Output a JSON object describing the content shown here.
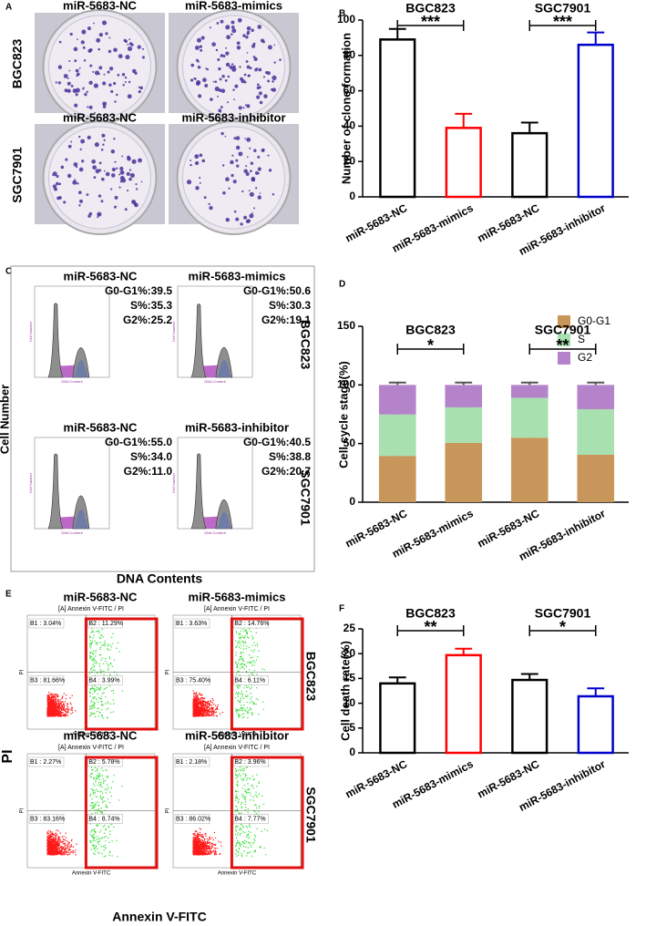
{
  "panel_a": {
    "label": "A",
    "rows": [
      {
        "name": "BGC823",
        "titles": [
          "miR-5683-NC",
          "miR-5683-mimics"
        ]
      },
      {
        "name": "SGC7901",
        "titles": [
          "miR-5683-NC",
          "miR-5683-inhibitor"
        ]
      }
    ]
  },
  "panel_c": {
    "label": "C",
    "y_label": "Cell Number",
    "x_label": "DNA Contents",
    "plot_x_label": "DNA Content",
    "plot_y_label": "Cell Number",
    "rows": [
      {
        "name": "BGC823",
        "plots": [
          {
            "title": "miR-5683-NC",
            "stats": [
              "G0-G1%:39.5",
              "S%:35.3",
              "G2%:25.2"
            ]
          },
          {
            "title": "miR-5683-mimics",
            "stats": [
              "G0-G1%:50.6",
              "S%:30.3",
              "G2%:19.1"
            ]
          }
        ]
      },
      {
        "name": "SGC7901",
        "plots": [
          {
            "title": "miR-5683-NC",
            "stats": [
              "G0-G1%:55.0",
              "S%:34.0",
              "G2%:11.0"
            ]
          },
          {
            "title": "miR-5683-inhibitor",
            "stats": [
              "G0-G1%:40.5",
              "S%:38.8",
              "G2%:20.7"
            ]
          }
        ]
      }
    ]
  },
  "panel_e": {
    "label": "E",
    "y_label": "PI",
    "x_label": "Annexin V-FITC",
    "plot_header": "[A] Annexin V-FITC / PI",
    "plot_x_label": "Annexin V-FITC",
    "plot_y_label": "PI",
    "rows": [
      {
        "name": "BGC823",
        "plots": [
          {
            "title": "miR-5683-NC",
            "quadrants": [
              "B1 : 3.04%",
              "B2 : 11.29%",
              "B3 : 81.66%",
              "B4 : 3.99%"
            ]
          },
          {
            "title": "miR-5683-mimics",
            "quadrants": [
              "B1 : 3.63%",
              "B2 : 14.76%",
              "B3 : 75.40%",
              "B4 : 6.11%"
            ]
          }
        ]
      },
      {
        "name": "SGC7901",
        "plots": [
          {
            "title": "miR-5683-NC",
            "quadrants": [
              "B1 : 2.27%",
              "B2 : 5.78%",
              "B3 : 83.16%",
              "B4 : 8.74%"
            ]
          },
          {
            "title": "miR-5683-inhibitor",
            "quadrants": [
              "B1 : 2.18%",
              "B2 : 3.96%",
              "B3 : 86.02%",
              "B4 : 7.77%"
            ]
          }
        ]
      }
    ]
  },
  "chart_data": [
    {
      "type": "bar",
      "panel_label": "B",
      "y_label": "Number of clone formation",
      "categories": [
        "miR-5683-NC",
        "miR-5683-mimics",
        "miR-5683-NC",
        "miR-5683-inhibitor"
      ],
      "values": [
        89,
        39,
        36,
        86
      ],
      "errors": [
        6,
        8,
        6,
        7
      ],
      "colors": [
        "#000000",
        "#ff0000",
        "#000000",
        "#0000cc"
      ],
      "ylim": [
        0,
        100
      ],
      "yticks": [
        0,
        20,
        40,
        60,
        80,
        100
      ],
      "annotations": [
        {
          "label": "BGC823",
          "significance": "***"
        },
        {
          "label": "SGC7901",
          "significance": "***"
        }
      ]
    },
    {
      "type": "stacked_bar",
      "panel_label": "D",
      "y_label": "Cell cycle stage(%)",
      "categories": [
        "miR-5683-NC",
        "miR-5683-mimics",
        "miR-5683-NC",
        "miR-5683-inhibitor"
      ],
      "series": [
        {
          "name": "G0-G1",
          "color": "#c8965a",
          "values": [
            39.5,
            50.6,
            55.0,
            40.5
          ],
          "errors": [
            3,
            2,
            3,
            3
          ]
        },
        {
          "name": "S",
          "color": "#a8e0b0",
          "values": [
            35.3,
            30.3,
            34.0,
            38.8
          ],
          "errors": [
            1,
            1,
            1,
            1
          ]
        },
        {
          "name": "G2",
          "color": "#b583c9",
          "values": [
            25.2,
            19.1,
            11.0,
            20.7
          ],
          "errors": [
            2,
            2,
            2,
            2
          ]
        }
      ],
      "ylim": [
        0,
        150
      ],
      "yticks": [
        0,
        50,
        100,
        150
      ],
      "legend": "top-right",
      "annotations": [
        {
          "label": "BGC823",
          "significance": "*"
        },
        {
          "label": "SGC7901",
          "significance": "**"
        }
      ]
    },
    {
      "type": "bar",
      "panel_label": "F",
      "y_label": "Cell death rate(%)",
      "categories": [
        "miR-5683-NC",
        "miR-5683-mimics",
        "miR-5683-NC",
        "miR-5683-inhibitor"
      ],
      "values": [
        14.0,
        19.7,
        14.7,
        11.4
      ],
      "errors": [
        1.2,
        1.3,
        1.2,
        1.6
      ],
      "colors": [
        "#000000",
        "#ff0000",
        "#000000",
        "#0000cc"
      ],
      "ylim": [
        0,
        25
      ],
      "yticks": [
        0,
        5,
        10,
        15,
        20,
        25
      ],
      "annotations": [
        {
          "label": "BGC823",
          "significance": "**"
        },
        {
          "label": "SGC7901",
          "significance": "*"
        }
      ]
    }
  ]
}
